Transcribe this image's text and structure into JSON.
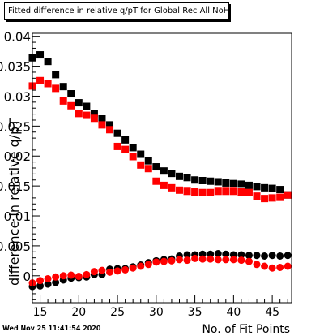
{
  "title": "Fitted difference in relative q/pT for Global Rec All NoHits",
  "timestamp": "Wed Nov 25 11:41:54 2020",
  "chart_data": {
    "type": "scatter",
    "title": "Fitted difference in relative q/pT for Global Rec All NoHits",
    "xlabel": "No. of Fit Points",
    "ylabel": "difference in relative q/pT",
    "xlim": [
      14,
      47.5
    ],
    "ylim": [
      -0.0045,
      0.0405
    ],
    "x_ticks": [
      15,
      20,
      25,
      30,
      35,
      40,
      45
    ],
    "y_ticks": [
      0,
      0.005,
      0.01,
      0.015,
      0.02,
      0.025,
      0.03,
      0.035,
      0.04
    ],
    "y_tick_labels": [
      "0",
      "0.005",
      "0.01",
      "0.015",
      "0.02",
      "0.025",
      "0.03",
      "0.035",
      "0.04"
    ],
    "x": [
      14,
      15,
      16,
      17,
      18,
      19,
      20,
      21,
      22,
      23,
      24,
      25,
      26,
      27,
      28,
      29,
      30,
      31,
      32,
      33,
      34,
      35,
      36,
      37,
      38,
      39,
      40,
      41,
      42,
      43,
      44,
      45,
      46,
      47
    ],
    "series": [
      {
        "marker": "square",
        "color": "#000000",
        "values": [
          0.0364,
          0.0369,
          0.0358,
          0.0336,
          0.0316,
          0.0304,
          0.0289,
          0.0283,
          0.0271,
          0.0262,
          0.0252,
          0.0238,
          0.0227,
          0.0214,
          0.0203,
          0.0192,
          0.0182,
          0.0175,
          0.0171,
          0.0166,
          0.0164,
          0.016,
          0.0159,
          0.0158,
          0.0157,
          0.0155,
          0.0154,
          0.0153,
          0.0151,
          0.0149,
          0.0147,
          0.0146,
          0.0144,
          0.0135
        ]
      },
      {
        "marker": "square",
        "color": "#ff0000",
        "values": [
          0.0317,
          0.0326,
          0.0321,
          0.0313,
          0.0292,
          0.0284,
          0.0271,
          0.0268,
          0.0263,
          0.0252,
          0.0244,
          0.0216,
          0.0211,
          0.0199,
          0.0185,
          0.0179,
          0.0158,
          0.0151,
          0.0147,
          0.0143,
          0.0141,
          0.014,
          0.0139,
          0.0139,
          0.0141,
          0.0141,
          0.0141,
          0.014,
          0.0139,
          0.0133,
          0.0129,
          0.013,
          0.0131,
          0.0135
        ]
      },
      {
        "marker": "circle",
        "color": "#000000",
        "values": [
          -0.0018,
          -0.0017,
          -0.0014,
          -0.0011,
          -0.0007,
          -0.0004,
          -0.0003,
          -0.0002,
          0.0002,
          0.0002,
          0.0011,
          0.0012,
          0.0012,
          0.0015,
          0.0018,
          0.0022,
          0.0025,
          0.0027,
          0.0028,
          0.0033,
          0.0035,
          0.0035,
          0.0036,
          0.0036,
          0.0037,
          0.0036,
          0.0035,
          0.0035,
          0.0034,
          0.0034,
          0.0033,
          0.0034,
          0.0033,
          0.0034
        ]
      },
      {
        "marker": "circle",
        "color": "#ff0000",
        "values": [
          -0.0012,
          -0.0008,
          -0.0005,
          -0.0002,
          0,
          0.0001,
          -0.0001,
          0.0002,
          0.0007,
          0.0009,
          0.0006,
          0.0008,
          0.001,
          0.0013,
          0.0016,
          0.0019,
          0.0023,
          0.0024,
          0.0025,
          0.0027,
          0.0026,
          0.0029,
          0.0028,
          0.0028,
          0.0027,
          0.0027,
          0.0027,
          0.0026,
          0.0024,
          0.0019,
          0.0016,
          0.0013,
          0.0014,
          0.0016
        ]
      }
    ]
  }
}
